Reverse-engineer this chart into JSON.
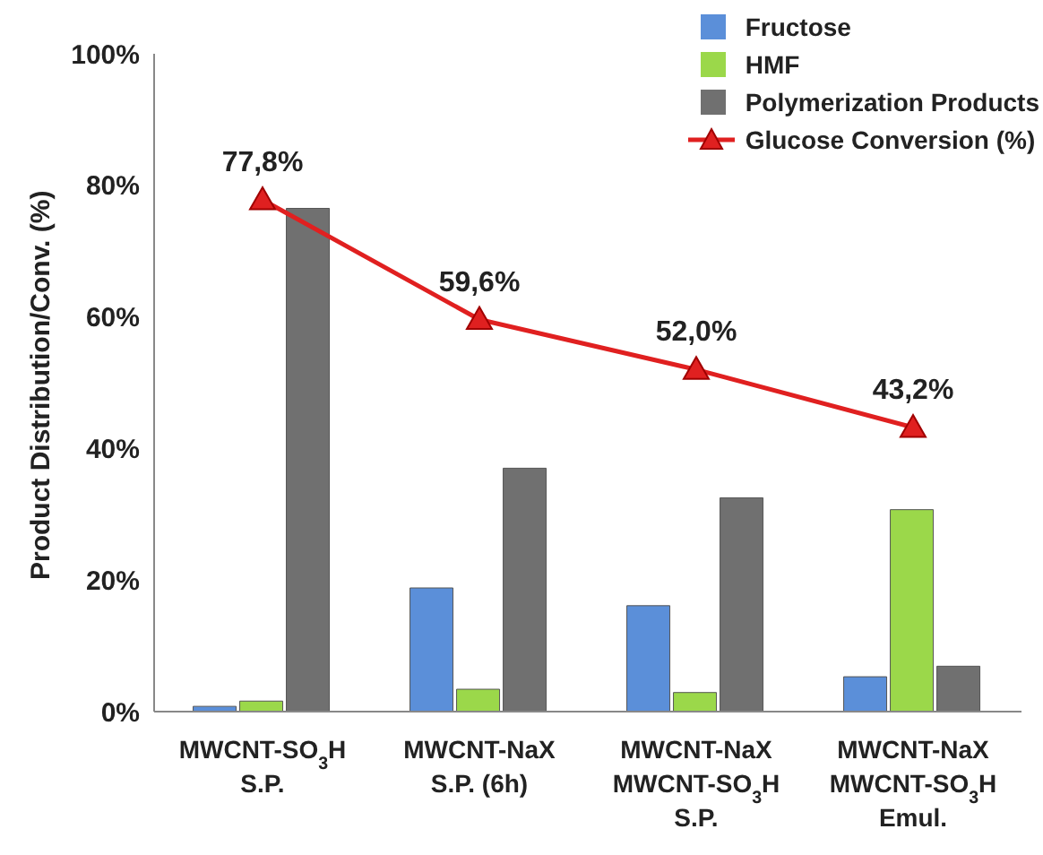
{
  "chart_data": {
    "type": "bar",
    "ylabel": "Product Distribution/Conv. (%)",
    "categories": [
      "MWCNT-SO$_{3}$H\nS.P.",
      "MWCNT-NaX\nS.P. (6h)",
      "MWCNT-NaX\nMWCNT-SO$_{3}$H\nS.P.",
      "MWCNT-NaX\nMWCNT-SO$_{3}$H\nEmul."
    ],
    "series": [
      {
        "name": "Fructose",
        "color": "#5b8fd9",
        "values": [
          0.8,
          18.8,
          16.1,
          5.3
        ]
      },
      {
        "name": "HMF",
        "color": "#9bd84a",
        "values": [
          1.6,
          3.4,
          2.9,
          30.7
        ]
      },
      {
        "name": "Polymerization Products",
        "color": "#707070",
        "values": [
          76.5,
          37,
          32.5,
          6.9
        ]
      },
      {
        "name": "Glucose Conversion (%)",
        "type": "line",
        "color": "#e02020",
        "marker": "triangle",
        "values": [
          77.8,
          59.6,
          52.0,
          43.2
        ],
        "value_labels": [
          "77,8%",
          "59,6%",
          "52,0%",
          "43,2%"
        ]
      }
    ],
    "ylim": [
      0,
      100
    ],
    "yticks": [
      {
        "value": 0,
        "label": "0%"
      },
      {
        "value": 20,
        "label": "20%"
      },
      {
        "value": 40,
        "label": "40%"
      },
      {
        "value": 60,
        "label": "60%"
      },
      {
        "value": 80,
        "label": "80%"
      },
      {
        "value": 100,
        "label": "100%"
      }
    ],
    "legend": "top right"
  }
}
